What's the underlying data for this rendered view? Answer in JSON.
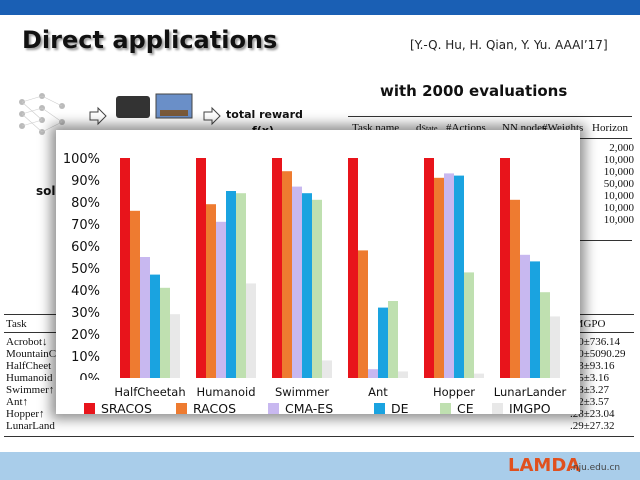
{
  "slide": {
    "title": "Direct applications",
    "citation": "[Y.-Q. Hu, H. Qian, Y. Yu. AAAI’17]",
    "subtitle": "with 2000 evaluations",
    "diagram": {
      "reward_label": "total reward",
      "fx_label": "f(x)",
      "sol_fragment": "sol"
    },
    "bg_table_top": {
      "headers": [
        "Task name",
        "d",
        "#Actions",
        "NN nodes",
        "#Weights",
        "Horizon"
      ],
      "header_sub": "State",
      "horizons": [
        "2,000",
        "10,000",
        "10,000",
        "50,000",
        "10,000",
        "10,000",
        "10,000"
      ]
    },
    "bg_table_bottom": {
      "header_left": "Task",
      "header_right": "IMGPO",
      "tasks": [
        "Acrobot↓",
        "MountainC",
        "HalfCheet",
        "Humanoid",
        "Swimmer↑",
        "Ant↑",
        "Hopper↑",
        "LunarLand"
      ],
      "imgpo": [
        ".00±736.14",
        ".40±5090.29",
        ".83±93.16",
        ".75±3.16",
        ".73±3.27",
        ".52±3.57",
        ".28±23.04",
        ".29±27.32"
      ]
    },
    "logo": {
      "text": "LAMDA",
      "domain": ".nju.edu.cn"
    }
  },
  "chart_data": {
    "type": "bar",
    "categories": [
      "HalfCheetah",
      "Humanoid",
      "Swimmer",
      "Ant",
      "Hopper",
      "LunarLander"
    ],
    "series": [
      {
        "name": "SRACOS",
        "values": [
          100,
          100,
          100,
          100,
          100,
          100
        ]
      },
      {
        "name": "RACOS",
        "values": [
          76,
          79,
          94,
          58,
          91,
          81
        ]
      },
      {
        "name": "CMA-ES",
        "values": [
          55,
          71,
          87,
          4,
          93,
          56
        ]
      },
      {
        "name": "DE",
        "values": [
          47,
          85,
          84,
          32,
          92,
          53
        ]
      },
      {
        "name": "CE",
        "values": [
          41,
          84,
          81,
          35,
          48,
          39
        ]
      },
      {
        "name": "IMGPO",
        "values": [
          29,
          43,
          8,
          3,
          2,
          28
        ]
      }
    ],
    "colors": [
      "#e8141b",
      "#ee7b30",
      "#c8b8f0",
      "#1aa3e0",
      "#bfe0b0",
      "#e8e8e8"
    ],
    "yticks": [
      "0%",
      "10%",
      "20%",
      "30%",
      "40%",
      "50%",
      "60%",
      "70%",
      "80%",
      "90%",
      "100%"
    ],
    "ylim": [
      0,
      100
    ],
    "grid": false,
    "legend_position": "bottom",
    "title": "",
    "xlabel": "",
    "ylabel": ""
  }
}
